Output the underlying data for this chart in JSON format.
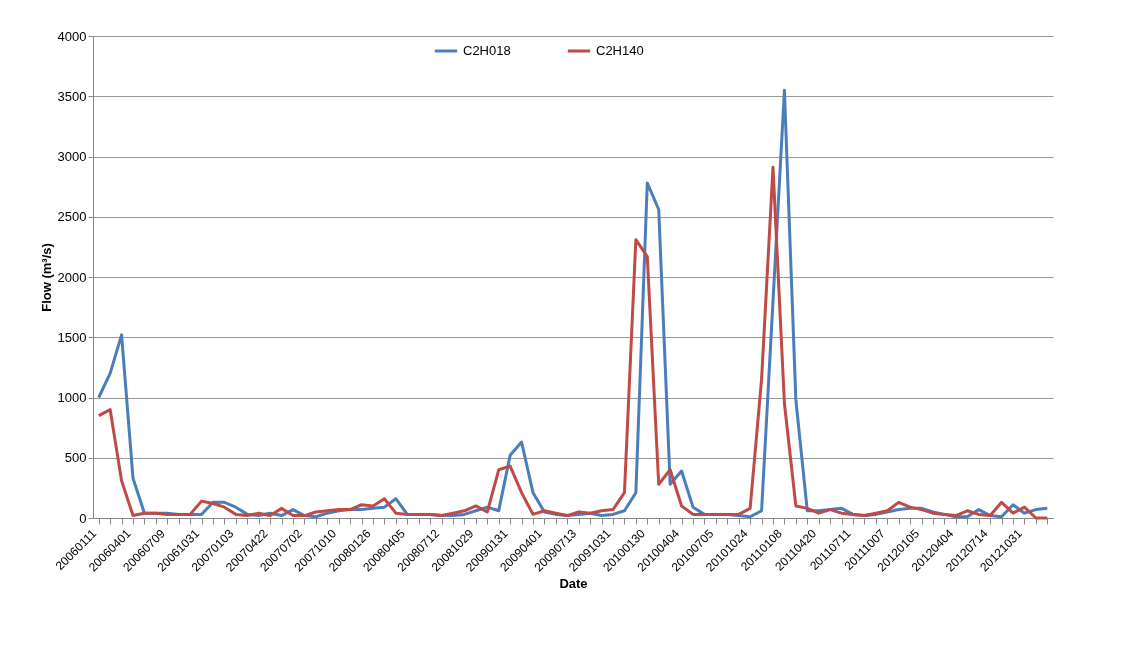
{
  "chart_data": {
    "type": "line",
    "xlabel": "Date",
    "ylabel": "Flow (m³/s)",
    "categories": [
      "20060111",
      null,
      null,
      "20060401",
      null,
      null,
      "20060709",
      null,
      null,
      "20061031",
      null,
      null,
      "20070103",
      null,
      null,
      "20070422",
      null,
      null,
      "20070702",
      null,
      null,
      "20071010",
      null,
      null,
      "20080126",
      null,
      null,
      "20080405",
      null,
      null,
      "20080712",
      null,
      null,
      "20081029",
      null,
      null,
      "20090131",
      null,
      null,
      "20090401",
      null,
      null,
      "20090713",
      null,
      null,
      "20091031",
      null,
      null,
      "20100130",
      null,
      null,
      "20100404",
      null,
      null,
      "20100705",
      null,
      null,
      "20101024",
      null,
      null,
      "20110108",
      null,
      null,
      "20110420",
      null,
      null,
      "20110711",
      null,
      null,
      "20111007",
      null,
      null,
      "20120105",
      null,
      null,
      "20120404",
      null,
      null,
      "20120714",
      null,
      null,
      "20121031",
      null,
      null
    ],
    "series": [
      {
        "name": "C2H018",
        "color": "#4a7ebb",
        "values": [
          1000,
          1200,
          1520,
          330,
          40,
          40,
          40,
          30,
          30,
          30,
          130,
          130,
          90,
          30,
          20,
          40,
          20,
          70,
          20,
          10,
          40,
          60,
          70,
          70,
          80,
          90,
          160,
          30,
          30,
          30,
          20,
          20,
          30,
          60,
          90,
          60,
          520,
          630,
          210,
          50,
          30,
          20,
          30,
          40,
          20,
          30,
          60,
          210,
          2780,
          2560,
          280,
          390,
          90,
          30,
          30,
          30,
          20,
          10,
          60,
          1800,
          3550,
          980,
          60,
          60,
          70,
          80,
          30,
          20,
          30,
          50,
          70,
          80,
          80,
          50,
          30,
          10,
          10,
          70,
          20,
          10,
          110,
          40,
          70,
          80
        ]
      },
      {
        "name": "C2H140",
        "color": "#be4b48",
        "values": [
          850,
          900,
          310,
          20,
          40,
          40,
          30,
          30,
          30,
          140,
          120,
          90,
          30,
          20,
          40,
          20,
          80,
          20,
          20,
          50,
          60,
          70,
          70,
          110,
          100,
          160,
          40,
          30,
          30,
          30,
          20,
          40,
          60,
          100,
          50,
          400,
          430,
          210,
          30,
          60,
          40,
          20,
          50,
          40,
          60,
          70,
          210,
          2310,
          2170,
          280,
          400,
          100,
          30,
          30,
          30,
          30,
          30,
          80,
          1150,
          2910,
          950,
          100,
          80,
          40,
          70,
          40,
          30,
          20,
          40,
          60,
          130,
          90,
          70,
          40,
          30,
          20,
          60,
          30,
          20,
          130,
          40,
          90,
          0,
          0
        ]
      }
    ],
    "ylim": [
      0,
      4000
    ],
    "yticks": [
      0,
      500,
      1000,
      1500,
      2000,
      2500,
      3000,
      3500,
      4000
    ],
    "grid": "y",
    "legend": "top",
    "marker": "none",
    "line_style": "solid"
  }
}
